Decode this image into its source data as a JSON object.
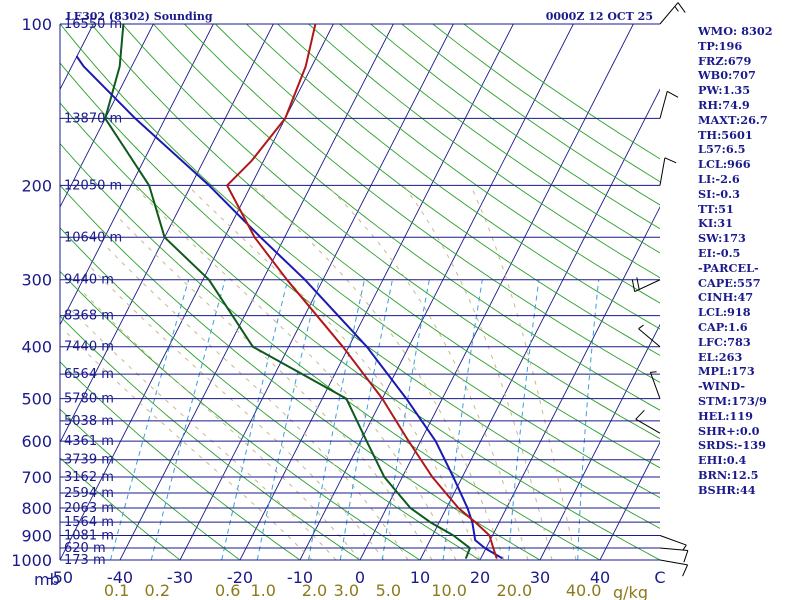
{
  "header": {
    "title": "LE302 (8302) Sounding",
    "time": "0000Z 12 OCT 25"
  },
  "indices": [
    "WMO: 8302",
    "TP:196",
    "FRZ:679",
    "WB0:707",
    "PW:1.35",
    "RH:74.9",
    "MAXT:26.7",
    "TH:5601",
    "L57:6.5",
    "LCL:966",
    "LI:-2.6",
    "SI:-0.3",
    "TT:51",
    "KI:31",
    "SW:173",
    "EI:-0.5",
    "-PARCEL-",
    "CAPE:557",
    "CINH:47",
    "LCL:918",
    "CAP:1.6",
    "LFC:783",
    "EL:263",
    "MPL:173",
    "-WIND-",
    "STM:173/9",
    "HEL:119",
    "SHR+:0.0",
    "SRDS:-139",
    "EHI:0.4",
    "BRN:12.5",
    "BSHR:44"
  ],
  "axes": {
    "pressure_unit": "mb",
    "mixing_unit": "g/kg",
    "pressure_ticks": [
      100,
      200,
      300,
      400,
      500,
      600,
      700,
      800,
      900,
      1000
    ],
    "temp_ticks": [
      "-50",
      "-40",
      "-30",
      "-20",
      "-10",
      "0",
      "10",
      "20",
      "30",
      "40",
      "C"
    ],
    "mixing_ticks": [
      "0.1",
      "0.2",
      "0.6",
      "1.0",
      "2.0",
      "3.0",
      "5.0",
      "10.0",
      "20.0",
      "40.0"
    ]
  },
  "heights": [
    {
      "p": 100,
      "label": "16550 m"
    },
    {
      "p": 150,
      "label": "13870 m"
    },
    {
      "p": 200,
      "label": "12050 m"
    },
    {
      "p": 250,
      "label": "10640 m"
    },
    {
      "p": 300,
      "label": "9440 m"
    },
    {
      "p": 350,
      "label": "8368 m"
    },
    {
      "p": 400,
      "label": "7440 m"
    },
    {
      "p": 450,
      "label": "6564 m"
    },
    {
      "p": 500,
      "label": "5780 m"
    },
    {
      "p": 550,
      "label": "5038 m"
    },
    {
      "p": 600,
      "label": "4361 m"
    },
    {
      "p": 650,
      "label": "3739 m"
    },
    {
      "p": 700,
      "label": "3162 m"
    },
    {
      "p": 750,
      "label": "2594 m"
    },
    {
      "p": 800,
      "label": "2063 m"
    },
    {
      "p": 850,
      "label": "1564 m"
    },
    {
      "p": 900,
      "label": "1081 m"
    },
    {
      "p": 950,
      "label": "620 m"
    },
    {
      "p": 1000,
      "label": "173 m"
    }
  ],
  "colors": {
    "isobar": "#1a1a8c",
    "isotherm": "#1a1a8c",
    "dry_adiabat": "#2aa02a",
    "moist_adiabat": "#c9b88a",
    "mixing_ratio": "#3aa0d8",
    "temperature": "#b01818",
    "dewpoint": "#0d5a1a",
    "parcel": "#1a1ab0",
    "wind": "#000000"
  },
  "chart_data": {
    "type": "skew-t",
    "title": "LE302 (8302) Sounding",
    "xlabel": "C",
    "ylabel": "mb",
    "pressure_range": [
      1000,
      100
    ],
    "temp_range": [
      -50,
      50
    ],
    "temperature": [
      {
        "p": 992,
        "t": 22.6
      },
      {
        "p": 950,
        "t": 21.2
      },
      {
        "p": 900,
        "t": 19.5
      },
      {
        "p": 850,
        "t": 16.0
      },
      {
        "p": 800,
        "t": 12.0
      },
      {
        "p": 700,
        "t": 5.0
      },
      {
        "p": 600,
        "t": -2.0
      },
      {
        "p": 500,
        "t": -10.0
      },
      {
        "p": 400,
        "t": -21.0
      },
      {
        "p": 300,
        "t": -36.0
      },
      {
        "p": 250,
        "t": -45.0
      },
      {
        "p": 200,
        "t": -54.0
      },
      {
        "p": 180,
        "t": -52.0
      },
      {
        "p": 150,
        "t": -50.0
      },
      {
        "p": 120,
        "t": -51.0
      },
      {
        "p": 100,
        "t": -53.0
      }
    ],
    "dewpoint": [
      {
        "p": 992,
        "td": 17.5
      },
      {
        "p": 950,
        "td": 17.3
      },
      {
        "p": 900,
        "td": 13.5
      },
      {
        "p": 850,
        "td": 8.5
      },
      {
        "p": 800,
        "td": 4.0
      },
      {
        "p": 700,
        "td": -3.0
      },
      {
        "p": 600,
        "td": -9.0
      },
      {
        "p": 500,
        "td": -16.0
      },
      {
        "p": 400,
        "td": -36.0
      },
      {
        "p": 300,
        "td": -49.0
      },
      {
        "p": 250,
        "td": -60.0
      },
      {
        "p": 200,
        "td": -67.0
      },
      {
        "p": 150,
        "td": -80.0
      },
      {
        "p": 120,
        "td": -82.0
      },
      {
        "p": 100,
        "td": -85.0
      }
    ],
    "parcel": [
      {
        "p": 992,
        "t": 23.5
      },
      {
        "p": 950,
        "t": 19.8
      },
      {
        "p": 918,
        "t": 17.5
      },
      {
        "p": 850,
        "t": 15.5
      },
      {
        "p": 800,
        "t": 13.5
      },
      {
        "p": 700,
        "t": 8.5
      },
      {
        "p": 600,
        "t": 2.5
      },
      {
        "p": 500,
        "t": -6.0
      },
      {
        "p": 400,
        "t": -17.0
      },
      {
        "p": 300,
        "t": -33.0
      },
      {
        "p": 250,
        "t": -44.0
      },
      {
        "p": 200,
        "t": -57.0
      },
      {
        "p": 150,
        "t": -75.0
      },
      {
        "p": 120,
        "t": -88.0
      },
      {
        "p": 115,
        "t": -90.0
      }
    ],
    "wind": [
      {
        "p": 1000,
        "dir": 100,
        "spd": 10
      },
      {
        "p": 950,
        "dir": 95,
        "spd": 10
      },
      {
        "p": 900,
        "dir": 110,
        "spd": 5
      },
      {
        "p": 580,
        "dir": 300,
        "spd": 10
      },
      {
        "p": 500,
        "dir": 340,
        "spd": 5
      },
      {
        "p": 400,
        "dir": 310,
        "spd": 5
      },
      {
        "p": 300,
        "dir": 245,
        "spd": 20
      },
      {
        "p": 200,
        "dir": 10,
        "spd": 10
      },
      {
        "p": 150,
        "dir": 15,
        "spd": 10
      },
      {
        "p": 100,
        "dir": 40,
        "spd": 15
      }
    ]
  }
}
